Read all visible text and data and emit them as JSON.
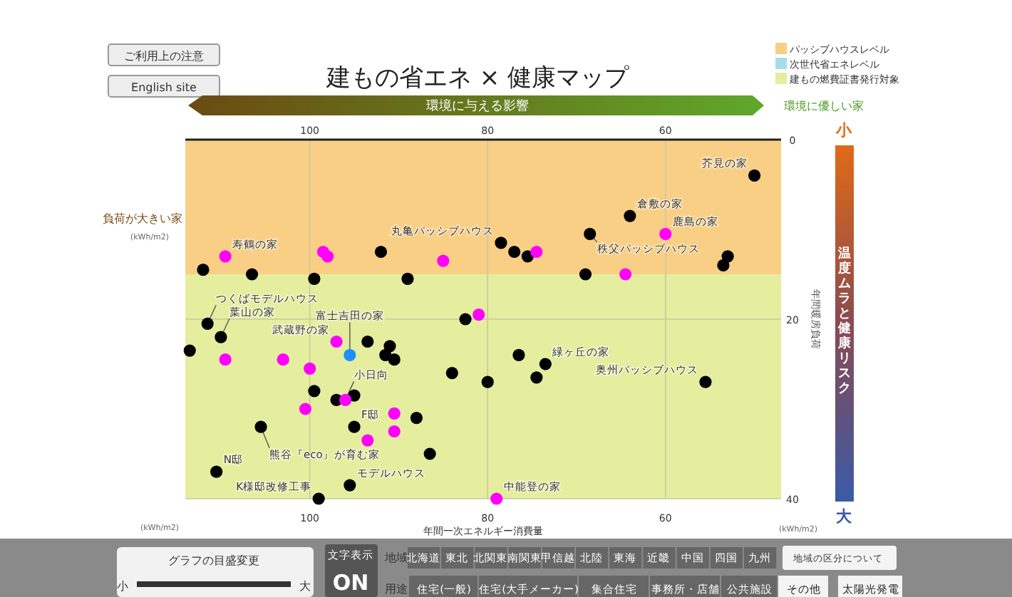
{
  "chart_data": {
    "type": "scatter",
    "title": "建もの省エネ × 健康マップ",
    "xlabel": "年間一次エネルギー消費量",
    "ylabel": "年間暖房負荷",
    "xlim": [
      114,
      47
    ],
    "xticks": [
      100,
      80,
      60
    ],
    "x2lim": [
      114,
      47
    ],
    "x2ticks": [
      100,
      80,
      60
    ],
    "ylim": [
      40,
      0
    ],
    "yticks": [
      0,
      20,
      40
    ],
    "grid": true,
    "marker": "circle",
    "legend": "top right",
    "bands": [
      {
        "axis": "y",
        "from": 0,
        "to": 15,
        "label": "パッシブハウスレベル",
        "color": "#f9cf86"
      },
      {
        "axis": "y",
        "from": 15,
        "to": 40,
        "label": "建もの燃費証書発行対象",
        "color": "#e4ee9e"
      }
    ],
    "series": [
      {
        "color": "#000000",
        "x": [
          50,
          64,
          68.5,
          78.5,
          77,
          75.5,
          69,
          53,
          53.5,
          92,
          89,
          99.5,
          106.5,
          112,
          111.5,
          110,
          113.5,
          93.5,
          91.5,
          90.5,
          91,
          84,
          99.5,
          97,
          95,
          105.5,
          95,
          88,
          86.5,
          110.5,
          95.5,
          99,
          76.5,
          73.5,
          74.5,
          80,
          55.5,
          82.5
        ],
        "values": [
          4,
          8.5,
          10.5,
          11.5,
          12.5,
          13,
          15,
          13,
          14,
          12.5,
          15.5,
          15.5,
          15,
          14.5,
          20.5,
          22,
          23.5,
          22.5,
          24,
          24.5,
          23,
          26,
          28,
          29,
          28.5,
          32,
          32,
          31,
          35,
          37,
          38.5,
          40,
          24,
          25,
          26.5,
          27,
          27,
          20
        ]
      },
      {
        "color": "#ff00ff",
        "x": [
          109.5,
          98.5,
          98,
          85,
          60,
          74.5,
          64.5,
          81,
          109.5,
          103,
          100,
          97,
          96,
          100.5,
          90.5,
          90.5,
          93.5,
          79
        ],
        "values": [
          13,
          12.5,
          13,
          13.5,
          10.5,
          12.5,
          15,
          19.5,
          24.5,
          24.5,
          25.5,
          22.5,
          29,
          30,
          30.5,
          32.5,
          33.5,
          40
        ]
      },
      {
        "color": "#1e90ff",
        "x": [
          95.5
        ],
        "values": [
          24
        ]
      }
    ],
    "annotations": [
      "ご利用上の注意",
      "English site",
      "次世代省エネレベル",
      "負荷が大きい家",
      "環境に与える影響",
      "環境に優しい家",
      "(kWh/m2)",
      "(kWh/m2)",
      "(kWh/m2)",
      "小",
      "温度ムラと健康リスク",
      "大",
      "グラフの目盛変更",
      "小",
      "大",
      "文字表示",
      "ON",
      "地域",
      "北海道",
      "東北",
      "北関東",
      "南関東",
      "甲信越",
      "北陸",
      "東海",
      "近畿",
      "中国",
      "四国",
      "九州",
      "地域の区分について",
      "用途",
      "住宅(一般)",
      "住宅(大手メーカー)",
      "集合住宅",
      "事務所・店舗",
      "公共施設",
      "その他",
      "太陽光発電",
      {
        "text": "芥見の家",
        "x": 50,
        "y": 4
      },
      {
        "text": "倉敷の家",
        "x": 64,
        "y": 8.5
      },
      {
        "text": "鹿島の家",
        "x": 60,
        "y": 10.5
      },
      {
        "text": "丸亀パッシブハウス",
        "x": 78.5,
        "y": 11.5
      },
      {
        "text": "秩父パッシブハウス",
        "x": 68.5,
        "y": 10.5
      },
      {
        "text": "寿鶴の家",
        "x": 109.5,
        "y": 13
      },
      {
        "text": "武蔵野の家",
        "x": 97,
        "y": 22.5
      },
      {
        "text": "富士吉田の家",
        "x": 95.5,
        "y": 24
      },
      {
        "text": "葉山の家",
        "x": 110,
        "y": 22
      },
      {
        "text": "つくばモデルハウス",
        "x": 111.5,
        "y": 20.5
      },
      {
        "text": "熊谷『eco』が育む家",
        "x": 105.5,
        "y": 32
      },
      {
        "text": "F邸",
        "x": 95,
        "y": 32
      },
      {
        "text": "N邸",
        "x": 110.5,
        "y": 37
      },
      {
        "text": "モデルハウス",
        "x": 95.5,
        "y": 38.5
      },
      {
        "text": "K様邸改修工事",
        "x": 99,
        "y": 40
      },
      {
        "text": "中能登の家",
        "x": 79,
        "y": 40
      },
      {
        "text": "緑ヶ丘の家",
        "x": 73.5,
        "y": 25
      },
      {
        "text": "奥州パッシブハウス",
        "x": 55.5,
        "y": 27
      },
      {
        "text": "小日向",
        "x": 96,
        "y": 29
      }
    ]
  }
}
